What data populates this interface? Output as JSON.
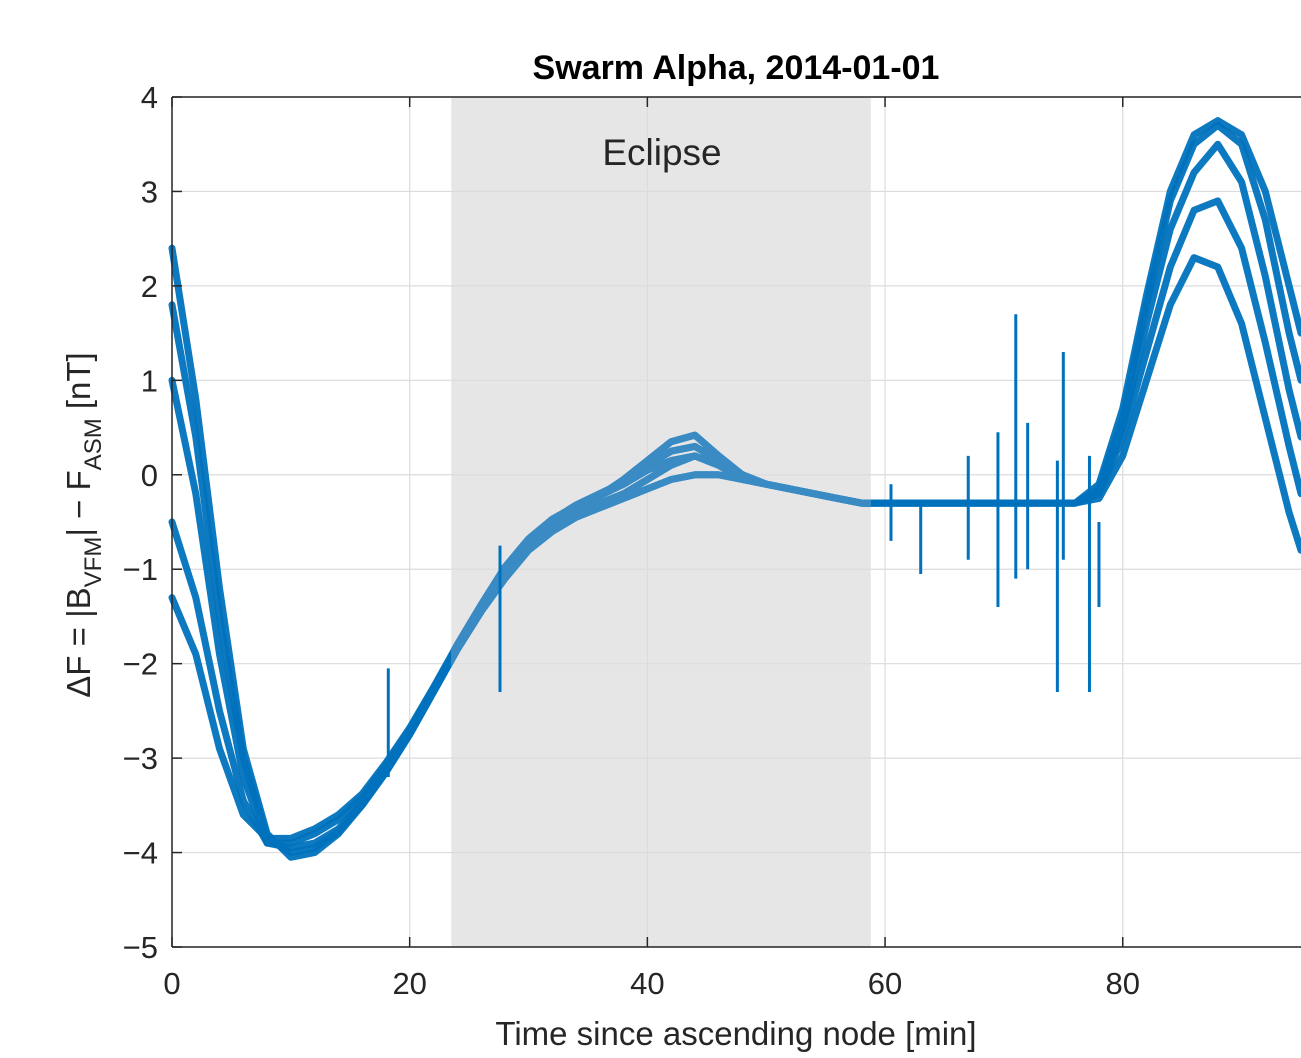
{
  "chart_data": {
    "type": "line",
    "title": "Swarm Alpha, 2014-01-01",
    "xlabel": "Time since ascending node [min]",
    "ylabel": {
      "prefix": "ΔF = |B",
      "sub1": "VFM",
      "middle": "| − F",
      "sub2": "ASM",
      "suffix": " [nT]"
    },
    "xlim": [
      0,
      95
    ],
    "ylim": [
      -5,
      4
    ],
    "xticks": [
      0,
      20,
      40,
      60,
      80
    ],
    "yticks": [
      -5,
      -4,
      -3,
      -2,
      -1,
      0,
      1,
      2,
      3,
      4
    ],
    "xtick_labels": [
      "0",
      "20",
      "40",
      "60",
      "80"
    ],
    "ytick_labels": [
      "−5",
      "−4",
      "−3",
      "−2",
      "−1",
      "0",
      "1",
      "2",
      "3",
      "4"
    ],
    "grid": true,
    "shaded_region": {
      "label": "Eclipse",
      "x_start": 23.5,
      "x_end": 58.8,
      "color": "#e6e6e6"
    },
    "series_color": "#0072bd",
    "series_color_eclipse": "#3a8bc4",
    "series": [
      {
        "offset": 0.0,
        "x": [
          0,
          2,
          4,
          6,
          8,
          10,
          12,
          14,
          16,
          18,
          20,
          22,
          24,
          26,
          28,
          30,
          32,
          34,
          36,
          38,
          40,
          42,
          44,
          46,
          48,
          50,
          52,
          54,
          56,
          58,
          60,
          62,
          64,
          66,
          68,
          70,
          72,
          74,
          76,
          78,
          80,
          82,
          84,
          86,
          88,
          90,
          92,
          94,
          95
        ],
        "y": [
          2.4,
          0.8,
          -1.2,
          -2.9,
          -3.8,
          -4.05,
          -4.0,
          -3.8,
          -3.5,
          -3.15,
          -2.75,
          -2.3,
          -1.85,
          -1.45,
          -1.1,
          -0.8,
          -0.6,
          -0.45,
          -0.35,
          -0.25,
          -0.15,
          -0.05,
          0.0,
          0.0,
          -0.05,
          -0.1,
          -0.15,
          -0.2,
          -0.25,
          -0.3,
          -0.3,
          -0.3,
          -0.3,
          -0.3,
          -0.3,
          -0.3,
          -0.3,
          -0.3,
          -0.3,
          -0.25,
          0.2,
          1.0,
          1.8,
          2.3,
          2.2,
          1.6,
          0.6,
          -0.4,
          -0.8
        ]
      },
      {
        "offset": 0.25,
        "x": [
          0,
          2,
          4,
          6,
          8,
          10,
          12,
          14,
          16,
          18,
          20,
          22,
          24,
          26,
          28,
          30,
          32,
          34,
          36,
          38,
          40,
          42,
          44,
          46,
          48,
          50,
          52,
          54,
          56,
          58,
          60,
          62,
          64,
          66,
          68,
          70,
          72,
          74,
          76,
          78,
          80,
          82,
          84,
          86,
          88,
          90,
          92,
          94,
          95
        ],
        "y": [
          1.8,
          0.4,
          -1.5,
          -3.0,
          -3.85,
          -4.0,
          -3.95,
          -3.78,
          -3.5,
          -3.15,
          -2.75,
          -2.3,
          -1.85,
          -1.45,
          -1.05,
          -0.75,
          -0.55,
          -0.4,
          -0.3,
          -0.2,
          -0.05,
          0.1,
          0.2,
          0.1,
          -0.05,
          -0.1,
          -0.15,
          -0.2,
          -0.25,
          -0.3,
          -0.3,
          -0.3,
          -0.3,
          -0.3,
          -0.3,
          -0.3,
          -0.3,
          -0.3,
          -0.3,
          -0.2,
          0.4,
          1.3,
          2.2,
          2.8,
          2.9,
          2.4,
          1.4,
          0.3,
          -0.2
        ]
      },
      {
        "offset": 0.5,
        "x": [
          0,
          2,
          4,
          6,
          8,
          10,
          12,
          14,
          16,
          18,
          20,
          22,
          24,
          26,
          28,
          30,
          32,
          34,
          36,
          38,
          40,
          42,
          44,
          46,
          48,
          50,
          52,
          54,
          56,
          58,
          60,
          62,
          64,
          66,
          68,
          70,
          72,
          74,
          76,
          78,
          80,
          82,
          84,
          86,
          88,
          90,
          92,
          94,
          95
        ],
        "y": [
          1.0,
          -0.2,
          -1.9,
          -3.2,
          -3.9,
          -3.95,
          -3.9,
          -3.75,
          -3.48,
          -3.12,
          -2.72,
          -2.28,
          -1.83,
          -1.42,
          -1.02,
          -0.72,
          -0.5,
          -0.35,
          -0.22,
          -0.05,
          0.15,
          0.35,
          0.42,
          0.2,
          0.0,
          -0.1,
          -0.15,
          -0.2,
          -0.25,
          -0.3,
          -0.3,
          -0.3,
          -0.3,
          -0.3,
          -0.3,
          -0.3,
          -0.3,
          -0.3,
          -0.3,
          -0.2,
          0.5,
          1.6,
          2.6,
          3.2,
          3.5,
          3.1,
          2.1,
          0.9,
          0.4
        ]
      },
      {
        "offset": 0.75,
        "x": [
          0,
          2,
          4,
          6,
          8,
          10,
          12,
          14,
          16,
          18,
          20,
          22,
          24,
          26,
          28,
          30,
          32,
          34,
          36,
          38,
          40,
          42,
          44,
          46,
          48,
          50,
          52,
          54,
          56,
          58,
          60,
          62,
          64,
          66,
          68,
          70,
          72,
          74,
          76,
          78,
          80,
          82,
          84,
          86,
          88,
          90,
          92,
          94,
          95
        ],
        "y": [
          -0.5,
          -1.3,
          -2.5,
          -3.45,
          -3.9,
          -3.9,
          -3.8,
          -3.65,
          -3.42,
          -3.08,
          -2.7,
          -2.26,
          -1.82,
          -1.4,
          -1.0,
          -0.7,
          -0.48,
          -0.32,
          -0.2,
          -0.08,
          0.1,
          0.25,
          0.3,
          0.15,
          0.0,
          -0.1,
          -0.15,
          -0.2,
          -0.25,
          -0.3,
          -0.3,
          -0.3,
          -0.3,
          -0.3,
          -0.3,
          -0.3,
          -0.3,
          -0.3,
          -0.3,
          -0.15,
          0.6,
          1.8,
          2.9,
          3.5,
          3.7,
          3.5,
          2.7,
          1.5,
          1.0
        ]
      },
      {
        "offset": 1.0,
        "x": [
          0,
          2,
          4,
          6,
          8,
          10,
          12,
          14,
          16,
          18,
          20,
          22,
          24,
          26,
          28,
          30,
          32,
          34,
          36,
          38,
          40,
          42,
          44,
          46,
          48,
          50,
          52,
          54,
          56,
          58,
          60,
          62,
          64,
          66,
          68,
          70,
          72,
          74,
          76,
          78,
          80,
          82,
          84,
          86,
          88,
          90,
          92,
          94,
          95
        ],
        "y": [
          -1.3,
          -1.9,
          -2.9,
          -3.6,
          -3.85,
          -3.85,
          -3.75,
          -3.6,
          -3.38,
          -3.05,
          -2.68,
          -2.25,
          -1.8,
          -1.38,
          -0.98,
          -0.68,
          -0.47,
          -0.33,
          -0.22,
          -0.1,
          0.05,
          0.15,
          0.2,
          0.1,
          -0.02,
          -0.1,
          -0.15,
          -0.2,
          -0.25,
          -0.3,
          -0.3,
          -0.3,
          -0.3,
          -0.3,
          -0.3,
          -0.3,
          -0.3,
          -0.3,
          -0.3,
          -0.1,
          0.7,
          1.9,
          3.0,
          3.6,
          3.75,
          3.6,
          3.0,
          2.0,
          1.5
        ]
      }
    ],
    "spikes": [
      {
        "x": 18.2,
        "y_low": -3.2,
        "y_high": -2.05
      },
      {
        "x": 27.6,
        "y_low": -2.3,
        "y_high": -0.75
      },
      {
        "x": 60.5,
        "y_low": -0.7,
        "y_high": -0.1
      },
      {
        "x": 63.0,
        "y_low": -1.05,
        "y_high": -0.3
      },
      {
        "x": 67.0,
        "y_low": -0.9,
        "y_high": 0.2
      },
      {
        "x": 69.5,
        "y_low": -1.4,
        "y_high": 0.45
      },
      {
        "x": 71.0,
        "y_low": -1.1,
        "y_high": 1.7
      },
      {
        "x": 72.0,
        "y_low": -1.0,
        "y_high": 0.55
      },
      {
        "x": 74.5,
        "y_low": -2.3,
        "y_high": 0.15
      },
      {
        "x": 75.0,
        "y_low": -0.9,
        "y_high": 1.3
      },
      {
        "x": 77.2,
        "y_low": -2.3,
        "y_high": 0.2
      },
      {
        "x": 78.0,
        "y_low": -1.4,
        "y_high": -0.5
      }
    ]
  }
}
